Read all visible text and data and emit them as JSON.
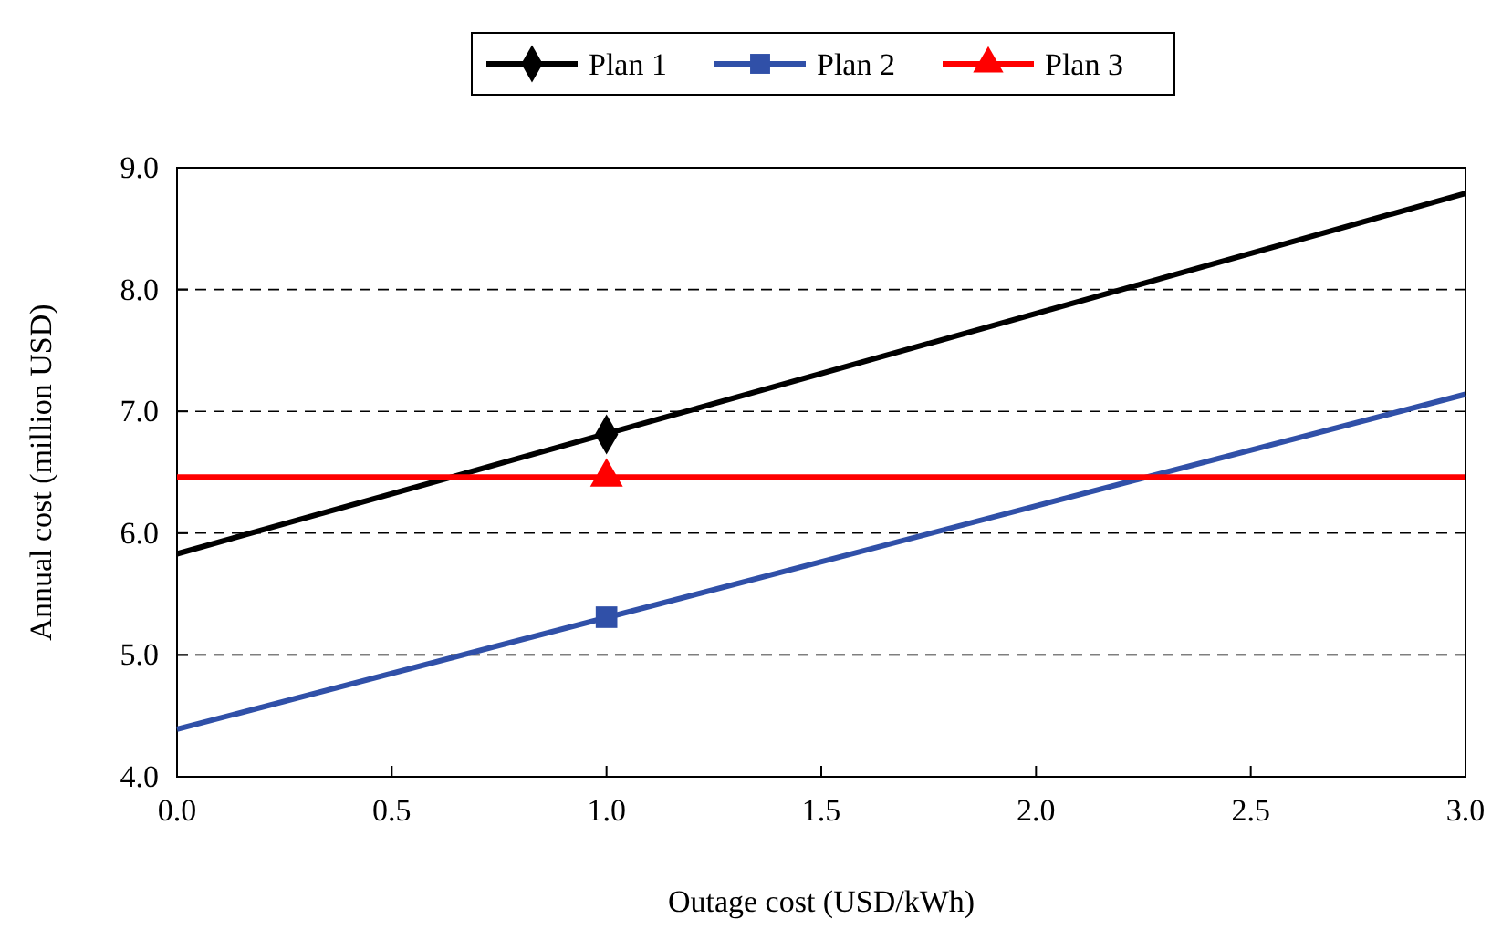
{
  "chart_data": {
    "type": "line",
    "xlabel": "Outage cost (USD/kWh)",
    "ylabel": "Annual cost (million USD)",
    "xlim": [
      0,
      3
    ],
    "xticks": [
      {
        "value": 0,
        "label": "0.0"
      },
      {
        "value": 0.5,
        "label": "0.5"
      },
      {
        "value": 1,
        "label": "1.0"
      },
      {
        "value": 1.5,
        "label": "1.5"
      },
      {
        "value": 2,
        "label": "2.0"
      },
      {
        "value": 2.5,
        "label": "2.5"
      },
      {
        "value": 3,
        "label": "3.0"
      }
    ],
    "ylim": [
      4,
      9
    ],
    "yticks": [
      {
        "value": 4,
        "label": "4.0"
      },
      {
        "value": 5,
        "label": "5.0"
      },
      {
        "value": 6,
        "label": "6.0"
      },
      {
        "value": 7,
        "label": "7.0"
      },
      {
        "value": 8,
        "label": "8.0"
      },
      {
        "value": 9,
        "label": "9.0"
      }
    ],
    "grid": "y",
    "legend": "top",
    "series": [
      {
        "name": "Plan 1",
        "type": "line",
        "color": "#000000",
        "x": [
          0,
          3
        ],
        "values": [
          5.83,
          8.79
        ]
      },
      {
        "type": "scatter",
        "color": "#000000",
        "marker": "diamond",
        "x": [
          1
        ],
        "values": [
          6.81
        ]
      },
      {
        "name": "Plan 2",
        "type": "line",
        "color": "#3050a8",
        "x": [
          0,
          3
        ],
        "values": [
          4.39,
          7.14
        ]
      },
      {
        "type": "scatter",
        "color": "#3050a8",
        "marker": "square",
        "x": [
          1
        ],
        "values": [
          5.31
        ]
      },
      {
        "name": "Plan 3",
        "type": "line",
        "color": "#ff0000",
        "x": [
          0,
          3
        ],
        "values": [
          6.46,
          6.46
        ]
      },
      {
        "type": "scatter",
        "color": "#ff0000",
        "marker": "triangle",
        "x": [
          1
        ],
        "values": [
          6.46
        ]
      }
    ]
  }
}
